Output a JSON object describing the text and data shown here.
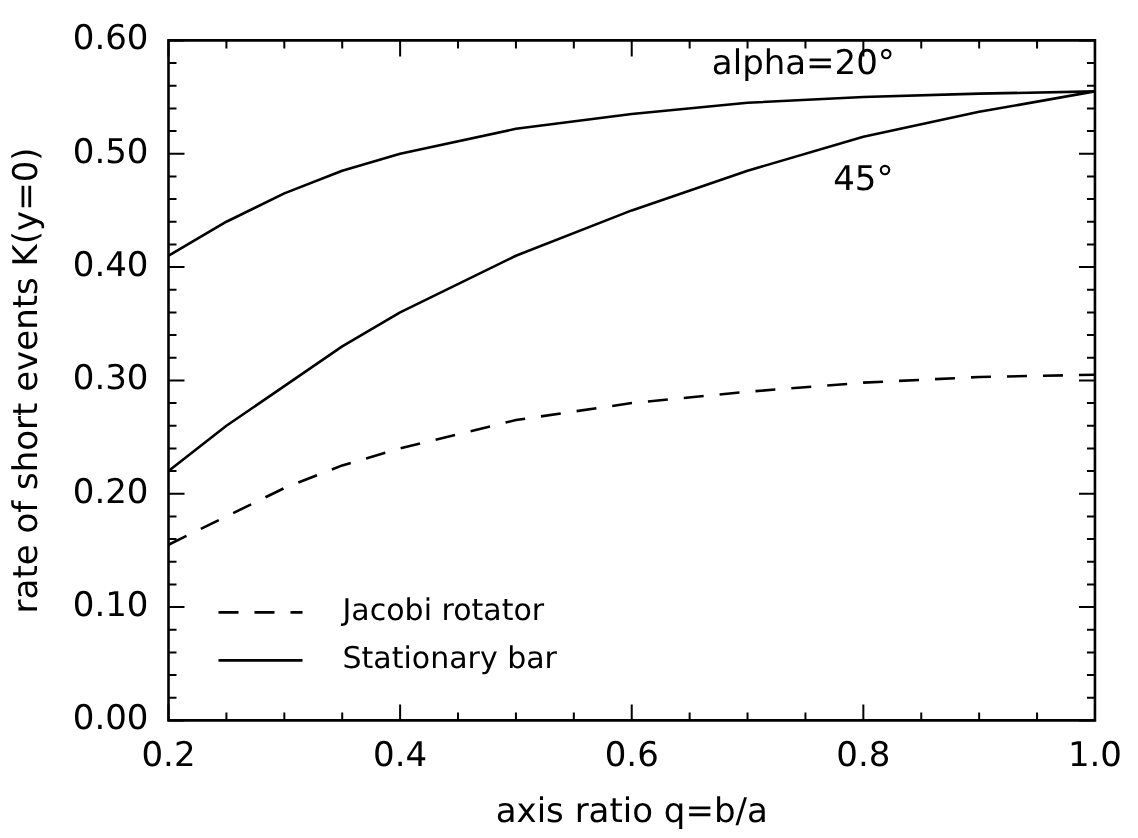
{
  "chart_data": {
    "type": "line",
    "xlabel": "axis ratio q=b/a",
    "ylabel": "rate of short events K(y=0)",
    "x": [
      0.2,
      0.25,
      0.3,
      0.35,
      0.4,
      0.5,
      0.6,
      0.7,
      0.8,
      0.9,
      1.0
    ],
    "series": [
      {
        "name": "Jacobi rotator",
        "color": "#000000",
        "line_style": "dashed",
        "values": [
          0.155,
          0.18,
          0.205,
          0.225,
          0.24,
          0.265,
          0.28,
          0.29,
          0.298,
          0.303,
          0.305
        ]
      },
      {
        "name": "Stationary bar",
        "color": "#000000",
        "line_style": "solid",
        "values": [
          0.41,
          0.44,
          0.465,
          0.485,
          0.5,
          0.522,
          0.535,
          0.545,
          0.55,
          0.553,
          0.555
        ]
      },
      {
        "color": "#000000",
        "line_style": "solid",
        "values": [
          0.22,
          0.26,
          0.295,
          0.33,
          0.36,
          0.41,
          0.45,
          0.485,
          0.515,
          0.537,
          0.555
        ]
      }
    ],
    "xlim": [
      0.2,
      1.0
    ],
    "xticks": [
      0.2,
      0.4,
      0.6,
      0.8,
      {
        "value": 1.0,
        "label": "1.0"
      }
    ],
    "ylim": [
      0,
      0.6
    ],
    "yticks": [
      {
        "value": 0,
        "label": "0.00"
      },
      {
        "value": 0.1,
        "label": "0.10"
      },
      {
        "value": 0.2,
        "label": "0.20"
      },
      {
        "value": 0.3,
        "label": "0.30"
      },
      {
        "value": 0.4,
        "label": "0.40"
      },
      {
        "value": 0.5,
        "label": "0.50"
      },
      {
        "value": 0.6,
        "label": "0.60"
      }
    ],
    "annotations": [
      "alpha=20°",
      "45°"
    ],
    "legend": "bottom left",
    "marker": "none",
    "grid": false
  }
}
